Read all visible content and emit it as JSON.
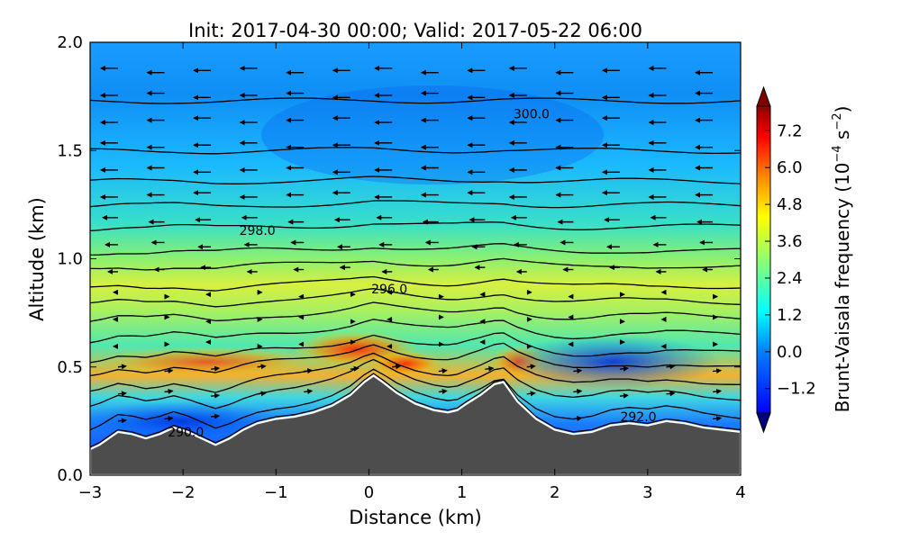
{
  "chart_data": {
    "type": "heatmap",
    "title": "Init: 2017-04-30 00:00; Valid: 2017-05-22 06:00",
    "xlabel": "Distance (km)",
    "ylabel": "Altitude (km)",
    "xlim": [
      -3,
      4
    ],
    "ylim": [
      0,
      2.0
    ],
    "xticks": [
      "−3",
      "−2",
      "−1",
      "0",
      "1",
      "2",
      "3",
      "4"
    ],
    "xtick_values": [
      -3,
      -2,
      -1,
      0,
      1,
      2,
      3,
      4
    ],
    "yticks": [
      "0.0",
      "0.5",
      "1.0",
      "1.5",
      "2.0"
    ],
    "ytick_values": [
      0,
      0.5,
      1.0,
      1.5,
      2.0
    ],
    "colorbar": {
      "label_main": "Brunt-Vaisala frequency (10",
      "label_exp": "−4",
      "label_mid": " s",
      "label_exp2": "−2",
      "label_end": ")",
      "ticks": [
        "−1.2",
        "0.0",
        "1.2",
        "2.4",
        "3.6",
        "4.8",
        "6.0",
        "7.2"
      ],
      "tick_values": [
        -1.2,
        0.0,
        1.2,
        2.4,
        3.6,
        4.8,
        6.0,
        7.2
      ],
      "range": [
        -2.0,
        8.0
      ],
      "extend": "both",
      "colormap": "jet",
      "colors": [
        "#00007f",
        "#0000ff",
        "#007fff",
        "#00ffff",
        "#7fff7f",
        "#ffff00",
        "#ff7f00",
        "#ff0000",
        "#7f0000"
      ]
    },
    "terrain": {
      "x": [
        -3.0,
        -2.9,
        -2.8,
        -2.7,
        -2.55,
        -2.4,
        -2.25,
        -2.1,
        -1.95,
        -1.8,
        -1.65,
        -1.5,
        -1.35,
        -1.2,
        -1.0,
        -0.8,
        -0.6,
        -0.4,
        -0.2,
        -0.05,
        0.05,
        0.15,
        0.3,
        0.5,
        0.7,
        0.85,
        0.95,
        1.05,
        1.2,
        1.35,
        1.45,
        1.6,
        1.8,
        2.0,
        2.2,
        2.4,
        2.6,
        2.8,
        3.0,
        3.2,
        3.4,
        3.6,
        3.8,
        4.0
      ],
      "y": [
        0.12,
        0.14,
        0.17,
        0.2,
        0.19,
        0.17,
        0.19,
        0.22,
        0.2,
        0.17,
        0.14,
        0.17,
        0.21,
        0.24,
        0.26,
        0.27,
        0.29,
        0.32,
        0.37,
        0.43,
        0.46,
        0.43,
        0.38,
        0.33,
        0.3,
        0.29,
        0.3,
        0.33,
        0.37,
        0.42,
        0.43,
        0.34,
        0.26,
        0.21,
        0.19,
        0.2,
        0.23,
        0.24,
        0.23,
        0.25,
        0.24,
        0.22,
        0.21,
        0.2
      ],
      "color": "#4d4d4d"
    },
    "isentropes": {
      "line_color": "#000000",
      "labels": [
        {
          "text": "300.0",
          "x": 1.75,
          "y": 1.67
        },
        {
          "text": "298.0",
          "x": -1.2,
          "y": 1.13
        },
        {
          "text": "296.0",
          "x": 0.22,
          "y": 0.86
        },
        {
          "text": "292.0",
          "x": 2.9,
          "y": 0.27
        },
        {
          "text": "290.0",
          "x": -1.97,
          "y": 0.2
        }
      ]
    },
    "wind_vectors": {
      "description": "black arrows pointing mostly to the left (easterly flow aloft), weak right-pointing arrows near the surface",
      "color": "#000000"
    }
  }
}
